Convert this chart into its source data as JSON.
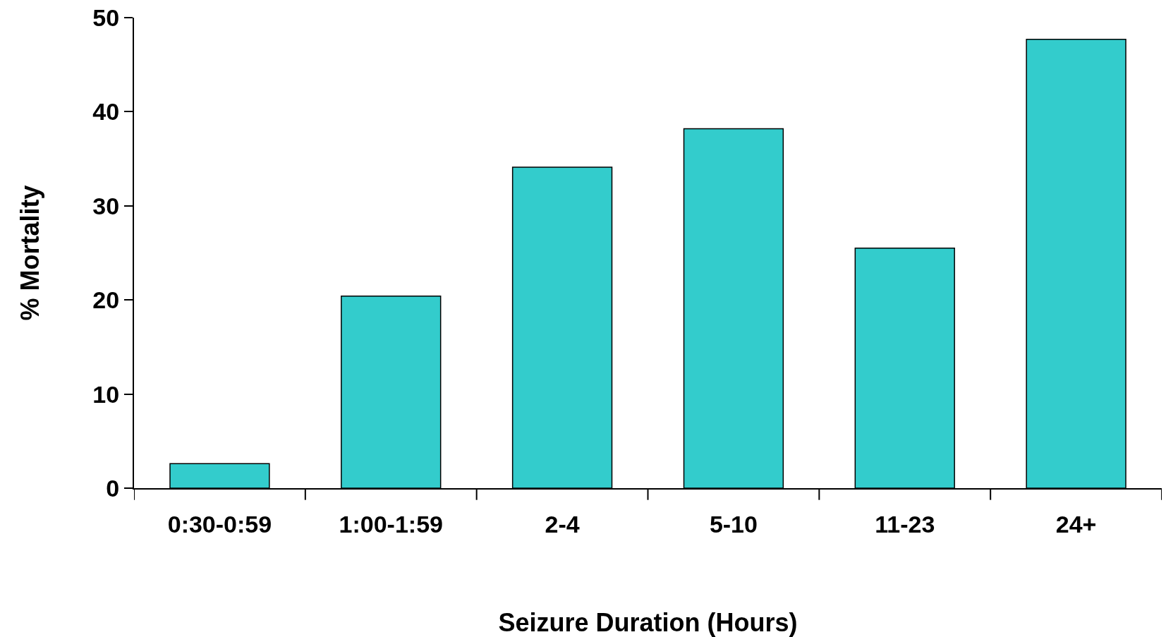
{
  "chart_data": {
    "type": "bar",
    "xlabel": "Seizure Duration (Hours)",
    "ylabel": "% Mortality",
    "categories": [
      "0:30-0:59",
      "1:00-1:59",
      "2-4",
      "5-10",
      "11-23",
      "24+"
    ],
    "values": [
      2.6,
      20.4,
      34.1,
      38.2,
      25.5,
      47.7
    ],
    "color": "#33cccc",
    "ylim": [
      0,
      50
    ],
    "yticks": [
      0,
      10,
      20,
      30,
      40,
      50
    ]
  }
}
